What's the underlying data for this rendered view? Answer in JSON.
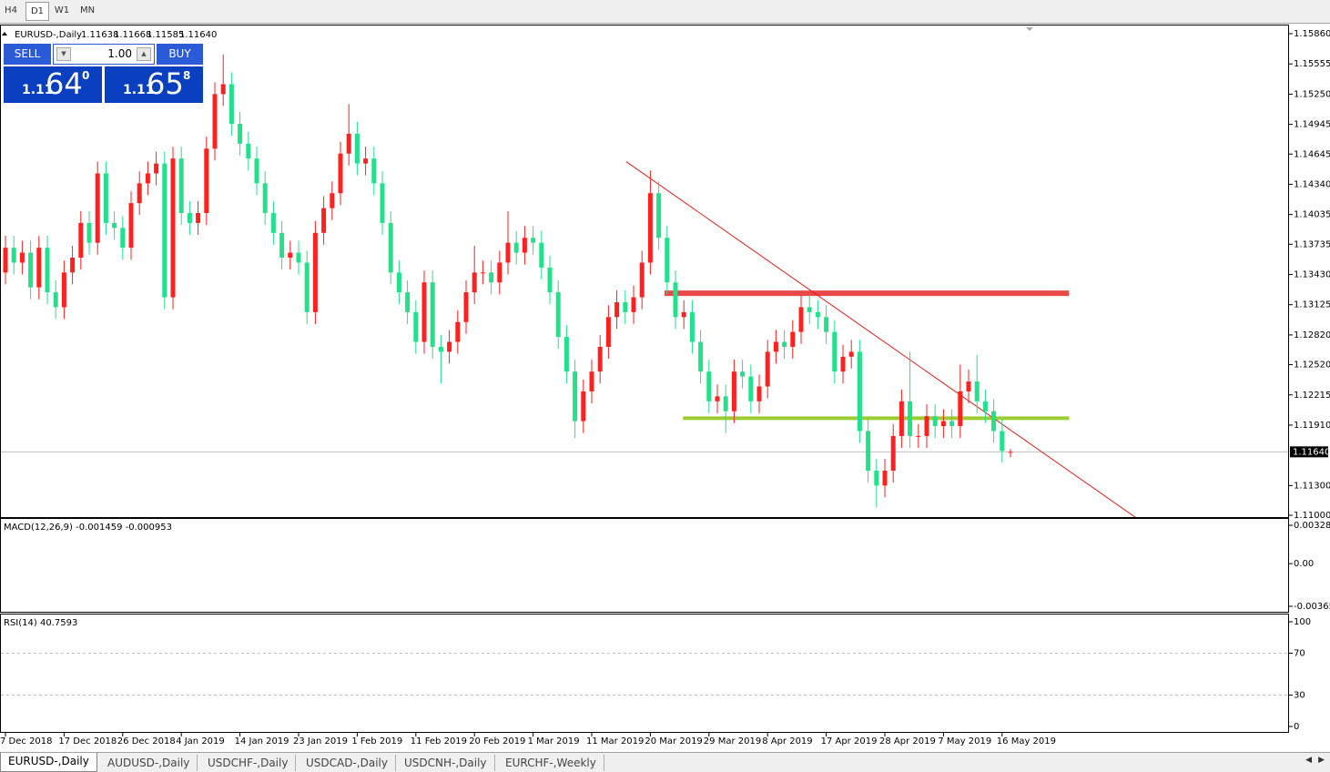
{
  "toolbar": {
    "timeframes": [
      "H4",
      "D1",
      "W1",
      "MN"
    ],
    "active": 1
  },
  "chart_data": {
    "type": "candlestick",
    "symbol": "EURUSD-,Daily",
    "ohlc_labels": [
      "1.11638",
      "1.11668",
      "1.11585",
      "1.11640"
    ],
    "colors": {
      "up": "#ff2020",
      "down": "#22e08c"
    },
    "categories": [
      "7 Dec 2018",
      null,
      null,
      null,
      null,
      null,
      null,
      "17 Dec 2018",
      null,
      null,
      null,
      null,
      null,
      null,
      "26 Dec 2018",
      null,
      null,
      null,
      null,
      null,
      null,
      "4 Jan 2019",
      null,
      null,
      null,
      null,
      null,
      null,
      "14 Jan 2019",
      null,
      null,
      null,
      null,
      null,
      null,
      "23 Jan 2019",
      null,
      null,
      null,
      null,
      null,
      null,
      "1 Feb 2019",
      null,
      null,
      null,
      null,
      null,
      null,
      "11 Feb 2019",
      null,
      null,
      null,
      null,
      null,
      null,
      "20 Feb 2019",
      null,
      null,
      null,
      null,
      null,
      null,
      "1 Mar 2019",
      null,
      null,
      null,
      null,
      null,
      null,
      "11 Mar 2019",
      null,
      null,
      null,
      null,
      null,
      null,
      "20 Mar 2019",
      null,
      null,
      null,
      null,
      null,
      null,
      "29 Mar 2019",
      null,
      null,
      null,
      null,
      null,
      null,
      "8 Apr 2019",
      null,
      null,
      null,
      null,
      null,
      null,
      "17 Apr 2019",
      null,
      null,
      null,
      null,
      null,
      null,
      "28 Apr 2019",
      null,
      null,
      null,
      null,
      null,
      null,
      "7 May 2019",
      null,
      null,
      null,
      null,
      null,
      null,
      "16 May 2019",
      null
    ],
    "candles": [
      [
        1.1345,
        1.1382,
        1.1333,
        1.137
      ],
      [
        1.137,
        1.1382,
        1.1343,
        1.1355
      ],
      [
        1.1355,
        1.1377,
        1.1343,
        1.1365
      ],
      [
        1.1365,
        1.1377,
        1.1318,
        1.133
      ],
      [
        1.133,
        1.1382,
        1.1318,
        1.137
      ],
      [
        1.137,
        1.1382,
        1.1313,
        1.1325
      ],
      [
        1.1325,
        1.1337,
        1.1298,
        1.131
      ],
      [
        1.131,
        1.1357,
        1.1298,
        1.1345
      ],
      [
        1.1345,
        1.1372,
        1.1333,
        1.136
      ],
      [
        1.136,
        1.1407,
        1.1348,
        1.1395
      ],
      [
        1.1395,
        1.1407,
        1.1363,
        1.1375
      ],
      [
        1.1375,
        1.1457,
        1.1363,
        1.1445
      ],
      [
        1.1445,
        1.1457,
        1.1383,
        1.1395
      ],
      [
        1.1395,
        1.1407,
        1.1378,
        1.139
      ],
      [
        1.139,
        1.1402,
        1.1358,
        1.137
      ],
      [
        1.137,
        1.1427,
        1.1358,
        1.1415
      ],
      [
        1.1415,
        1.1447,
        1.1403,
        1.1435
      ],
      [
        1.1435,
        1.1457,
        1.1423,
        1.1445
      ],
      [
        1.1445,
        1.1467,
        1.1433,
        1.1455
      ],
      [
        1.1455,
        1.1467,
        1.1308,
        1.132
      ],
      [
        1.132,
        1.1472,
        1.1308,
        1.146
      ],
      [
        1.146,
        1.1472,
        1.1393,
        1.1405
      ],
      [
        1.1405,
        1.1417,
        1.1383,
        1.1395
      ],
      [
        1.1395,
        1.1417,
        1.1383,
        1.1405
      ],
      [
        1.1405,
        1.1482,
        1.1393,
        1.147
      ],
      [
        1.147,
        1.1537,
        1.1458,
        1.1525
      ],
      [
        1.1525,
        1.1565,
        1.1513,
        1.1535
      ],
      [
        1.1535,
        1.1547,
        1.1483,
        1.1495
      ],
      [
        1.1495,
        1.1507,
        1.1463,
        1.1475
      ],
      [
        1.1475,
        1.1487,
        1.1448,
        1.146
      ],
      [
        1.146,
        1.1472,
        1.1423,
        1.1435
      ],
      [
        1.1435,
        1.1447,
        1.1393,
        1.1405
      ],
      [
        1.1405,
        1.1417,
        1.1373,
        1.1385
      ],
      [
        1.1385,
        1.1397,
        1.1348,
        1.136
      ],
      [
        1.136,
        1.1377,
        1.1348,
        1.1365
      ],
      [
        1.1365,
        1.1377,
        1.1343,
        1.1355
      ],
      [
        1.1355,
        1.1367,
        1.1293,
        1.1305
      ],
      [
        1.1305,
        1.1397,
        1.1293,
        1.1385
      ],
      [
        1.1385,
        1.1422,
        1.1373,
        1.141
      ],
      [
        1.141,
        1.1437,
        1.1398,
        1.1425
      ],
      [
        1.1425,
        1.1477,
        1.1413,
        1.1465
      ],
      [
        1.1465,
        1.1515,
        1.1453,
        1.1485
      ],
      [
        1.1485,
        1.1497,
        1.1443,
        1.1455
      ],
      [
        1.1455,
        1.1472,
        1.1443,
        1.146
      ],
      [
        1.146,
        1.1472,
        1.1423,
        1.1435
      ],
      [
        1.1435,
        1.1447,
        1.1383,
        1.1395
      ],
      [
        1.1395,
        1.1407,
        1.1333,
        1.1345
      ],
      [
        1.1345,
        1.1357,
        1.1313,
        1.1325
      ],
      [
        1.1325,
        1.1337,
        1.1293,
        1.1305
      ],
      [
        1.1305,
        1.1317,
        1.1263,
        1.1275
      ],
      [
        1.1275,
        1.1347,
        1.1263,
        1.1335
      ],
      [
        1.1335,
        1.1347,
        1.1258,
        1.127
      ],
      [
        1.127,
        1.1282,
        1.1233,
        1.1265
      ],
      [
        1.1265,
        1.1287,
        1.1253,
        1.1275
      ],
      [
        1.1275,
        1.1307,
        1.1263,
        1.1295
      ],
      [
        1.1295,
        1.1337,
        1.1283,
        1.1325
      ],
      [
        1.1325,
        1.1372,
        1.1313,
        1.1345
      ],
      [
        1.1345,
        1.1357,
        1.1333,
        1.1345
      ],
      [
        1.1345,
        1.1357,
        1.1323,
        1.1335
      ],
      [
        1.1335,
        1.1367,
        1.1323,
        1.1355
      ],
      [
        1.1355,
        1.1407,
        1.1343,
        1.1375
      ],
      [
        1.1375,
        1.1387,
        1.1353,
        1.1365
      ],
      [
        1.1365,
        1.1392,
        1.1353,
        1.138
      ],
      [
        1.138,
        1.1392,
        1.1363,
        1.1375
      ],
      [
        1.1375,
        1.1387,
        1.1338,
        1.135
      ],
      [
        1.135,
        1.1362,
        1.1313,
        1.1325
      ],
      [
        1.1325,
        1.1337,
        1.1268,
        1.128
      ],
      [
        1.128,
        1.1292,
        1.1233,
        1.1245
      ],
      [
        1.1245,
        1.1257,
        1.1178,
        1.1195
      ],
      [
        1.1195,
        1.1237,
        1.1183,
        1.1225
      ],
      [
        1.1225,
        1.1257,
        1.1213,
        1.1245
      ],
      [
        1.1245,
        1.1282,
        1.1233,
        1.127
      ],
      [
        1.127,
        1.1312,
        1.1258,
        1.13
      ],
      [
        1.13,
        1.1327,
        1.1288,
        1.1315
      ],
      [
        1.1315,
        1.1327,
        1.1293,
        1.1305
      ],
      [
        1.1305,
        1.1332,
        1.1293,
        1.132
      ],
      [
        1.132,
        1.1367,
        1.1308,
        1.1355
      ],
      [
        1.1355,
        1.1448,
        1.1343,
        1.1425
      ],
      [
        1.1425,
        1.1437,
        1.1368,
        1.138
      ],
      [
        1.138,
        1.1392,
        1.1323,
        1.1335
      ],
      [
        1.1335,
        1.1347,
        1.1288,
        1.13
      ],
      [
        1.13,
        1.1317,
        1.1288,
        1.1305
      ],
      [
        1.1305,
        1.1317,
        1.1263,
        1.1275
      ],
      [
        1.1275,
        1.1287,
        1.1233,
        1.1245
      ],
      [
        1.1245,
        1.1257,
        1.1203,
        1.1215
      ],
      [
        1.1215,
        1.1232,
        1.1203,
        1.122
      ],
      [
        1.122,
        1.1232,
        1.1183,
        1.1205
      ],
      [
        1.1205,
        1.1257,
        1.1193,
        1.1245
      ],
      [
        1.1245,
        1.1257,
        1.1228,
        1.124
      ],
      [
        1.124,
        1.1252,
        1.1203,
        1.1215
      ],
      [
        1.1215,
        1.1242,
        1.1203,
        1.123
      ],
      [
        1.123,
        1.1277,
        1.1218,
        1.1265
      ],
      [
        1.1265,
        1.1287,
        1.1253,
        1.1275
      ],
      [
        1.1275,
        1.1287,
        1.1258,
        1.127
      ],
      [
        1.127,
        1.1297,
        1.1258,
        1.1285
      ],
      [
        1.1285,
        1.1322,
        1.1273,
        1.131
      ],
      [
        1.131,
        1.1322,
        1.1293,
        1.1305
      ],
      [
        1.1305,
        1.1317,
        1.1288,
        1.13
      ],
      [
        1.13,
        1.1312,
        1.1273,
        1.1285
      ],
      [
        1.1285,
        1.1297,
        1.1233,
        1.1245
      ],
      [
        1.1245,
        1.1272,
        1.1233,
        1.126
      ],
      [
        1.126,
        1.1277,
        1.1248,
        1.1265
      ],
      [
        1.1265,
        1.1277,
        1.1173,
        1.1185
      ],
      [
        1.1185,
        1.1197,
        1.1133,
        1.1145
      ],
      [
        1.1145,
        1.1157,
        1.1108,
        1.113
      ],
      [
        1.113,
        1.1157,
        1.1118,
        1.1145
      ],
      [
        1.1145,
        1.1192,
        1.1133,
        1.118
      ],
      [
        1.118,
        1.1227,
        1.1168,
        1.1215
      ],
      [
        1.1215,
        1.1265,
        1.1168,
        1.118
      ],
      [
        1.118,
        1.1192,
        1.1168,
        1.118
      ],
      [
        1.118,
        1.1212,
        1.1168,
        1.12
      ],
      [
        1.12,
        1.1212,
        1.1178,
        1.119
      ],
      [
        1.119,
        1.1207,
        1.1178,
        1.1195
      ],
      [
        1.1195,
        1.1207,
        1.1178,
        1.119
      ],
      [
        1.119,
        1.1252,
        1.1178,
        1.1225
      ],
      [
        1.1225,
        1.1247,
        1.1213,
        1.1235
      ],
      [
        1.1235,
        1.1262,
        1.1203,
        1.1215
      ],
      [
        1.1215,
        1.1227,
        1.1193,
        1.1205
      ],
      [
        1.1205,
        1.1217,
        1.1173,
        1.1185
      ],
      [
        1.1185,
        1.1197,
        1.1153,
        1.1165
      ],
      [
        1.11638,
        1.11668,
        1.11585,
        1.1164
      ]
    ],
    "ylim": [
      1.11,
      1.1586
    ],
    "yticks": [
      {
        "value": 1.1586,
        "label": "1.15860"
      },
      {
        "value": 1.15555,
        "label": "1.15555"
      },
      {
        "value": 1.1525,
        "label": "1.15250"
      },
      {
        "value": 1.14945,
        "label": "1.14945"
      },
      {
        "value": 1.14645,
        "label": "1.14645"
      },
      {
        "value": 1.1434,
        "label": "1.14340"
      },
      {
        "value": 1.14035,
        "label": "1.14035"
      },
      {
        "value": 1.13735,
        "label": "1.13735"
      },
      {
        "value": 1.1343,
        "label": "1.13430"
      },
      {
        "value": 1.13125,
        "label": "1.13125"
      },
      {
        "value": 1.1282,
        "label": "1.12820"
      },
      {
        "value": 1.1252,
        "label": "1.12520"
      },
      {
        "value": 1.12215,
        "label": "1.12215"
      },
      {
        "value": 1.1191,
        "label": "1.11910"
      },
      {
        "value": 1.113,
        "label": "1.11300"
      },
      {
        "value": 1.11,
        "label": "1.11000"
      }
    ],
    "current_price": {
      "value": 1.1164,
      "label": "1.11640"
    },
    "lines": [
      {
        "x": [
          78.7,
          127
        ],
        "y": [
          1.1324,
          1.1324
        ],
        "color": "#e84848",
        "width": 6
      },
      {
        "x": [
          80.9,
          127
        ],
        "y": [
          1.1198,
          1.1198
        ],
        "color": "#9acd32",
        "width": 4
      },
      {
        "x": [
          74.1,
          134.9
        ],
        "y": [
          1.1457,
          1.1098
        ],
        "color": "#e02020",
        "width": 1
      }
    ]
  },
  "trade_panel": {
    "sell": "SELL",
    "buy": "BUY",
    "lots": "1.00",
    "bid": {
      "big": "1.11",
      "pips": "64",
      "fraction": "0"
    },
    "ask": {
      "big": "1.11",
      "pips": "65",
      "fraction": "8"
    }
  },
  "macd": {
    "label": "MACD(12,26,9) -0.001459 -0.000953",
    "ylim": [
      -0.003659,
      0.003287
    ],
    "yticks": [
      0.003287,
      {
        "value": 0,
        "label": "0.00"
      },
      -0.003659
    ]
  },
  "rsi": {
    "label": "RSI(14) 40.7593",
    "ylim": [
      0,
      100
    ],
    "yticks": [
      100,
      70,
      30,
      0
    ],
    "levels": [
      70,
      30
    ]
  },
  "tabs": {
    "items": [
      "EURUSD-,Daily",
      "AUDUSD-,Daily",
      "USDCHF-,Daily",
      "USDCAD-,Daily",
      "USDCNH-,Daily",
      "EURCHF-,Weekly"
    ],
    "active": 0
  }
}
